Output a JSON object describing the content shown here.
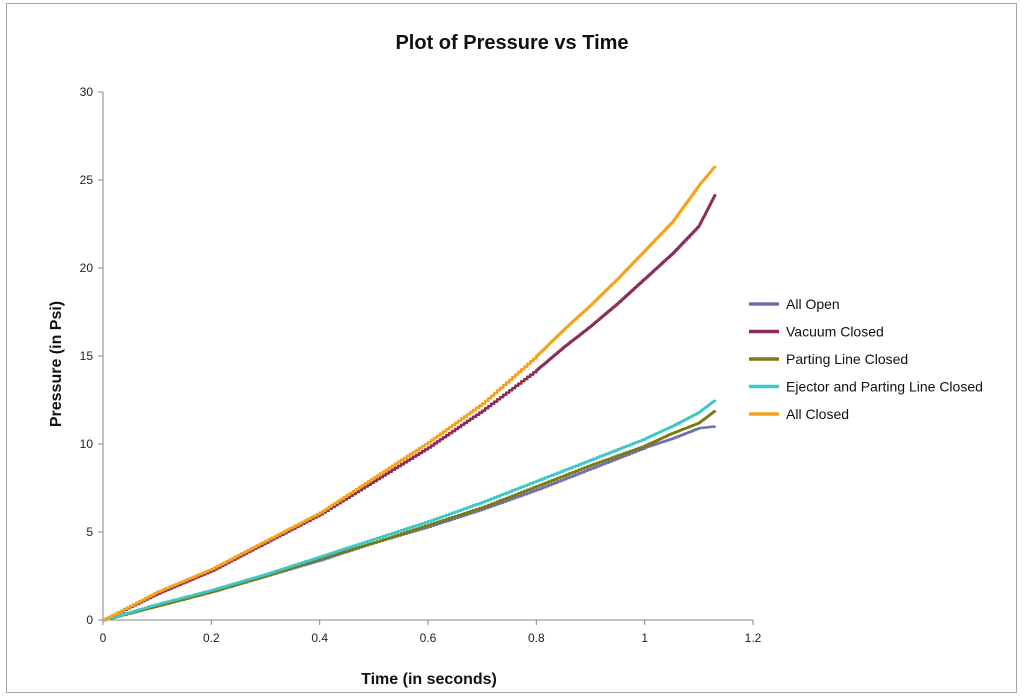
{
  "chart_data": {
    "type": "line",
    "title": "Plot of Pressure vs Time",
    "xlabel": "Time (in seconds)",
    "ylabel": "Pressure (in Psi)",
    "xlim": [
      0,
      1.2
    ],
    "ylim": [
      0,
      30
    ],
    "xticks": [
      0,
      0.2,
      0.4,
      0.6,
      0.8,
      1,
      1.2
    ],
    "xtick_labels": [
      "0",
      "0.2",
      "0.4",
      "0.6",
      "0.8",
      "1",
      "1.2"
    ],
    "yticks": [
      0,
      5,
      10,
      15,
      20,
      25,
      30
    ],
    "ytick_labels": [
      "0",
      "5",
      "10",
      "15",
      "20",
      "25",
      "30"
    ],
    "grid": false,
    "legend_position": "right",
    "series": [
      {
        "name": "All Open",
        "color": "#7070b0",
        "x": [
          0,
          0.1,
          0.2,
          0.3,
          0.4,
          0.5,
          0.6,
          0.7,
          0.8,
          0.9,
          1.0,
          1.05,
          1.1,
          1.13
        ],
        "y": [
          0,
          0.8,
          1.6,
          2.5,
          3.4,
          4.4,
          5.3,
          6.3,
          7.4,
          8.6,
          9.8,
          10.3,
          10.9,
          11.0
        ]
      },
      {
        "name": "Vacuum Closed",
        "color": "#8b2d5a",
        "x": [
          0,
          0.1,
          0.2,
          0.3,
          0.4,
          0.5,
          0.6,
          0.7,
          0.8,
          0.85,
          0.9,
          0.95,
          1.0,
          1.05,
          1.1,
          1.13
        ],
        "y": [
          0,
          1.5,
          2.8,
          4.4,
          6.0,
          7.9,
          9.8,
          11.9,
          14.2,
          15.5,
          16.7,
          18.0,
          19.4,
          20.8,
          22.4,
          24.2
        ]
      },
      {
        "name": "Parting Line Closed",
        "color": "#7a7a10",
        "x": [
          0,
          0.1,
          0.2,
          0.3,
          0.4,
          0.5,
          0.6,
          0.7,
          0.8,
          0.9,
          1.0,
          1.05,
          1.1,
          1.13
        ],
        "y": [
          0,
          0.8,
          1.6,
          2.5,
          3.5,
          4.4,
          5.4,
          6.4,
          7.6,
          8.8,
          9.9,
          10.6,
          11.2,
          11.9
        ]
      },
      {
        "name": "Ejector and Parting Line Closed",
        "color": "#3cc8c8",
        "x": [
          0,
          0.1,
          0.2,
          0.3,
          0.4,
          0.5,
          0.6,
          0.7,
          0.8,
          0.9,
          1.0,
          1.05,
          1.1,
          1.13
        ],
        "y": [
          0,
          0.9,
          1.7,
          2.6,
          3.6,
          4.6,
          5.6,
          6.7,
          7.9,
          9.1,
          10.3,
          11.0,
          11.8,
          12.5
        ]
      },
      {
        "name": "All Closed",
        "color": "#f5a21c",
        "x": [
          0,
          0.1,
          0.2,
          0.3,
          0.4,
          0.5,
          0.6,
          0.7,
          0.8,
          0.85,
          0.9,
          0.95,
          1.0,
          1.05,
          1.1,
          1.13
        ],
        "y": [
          0,
          1.6,
          2.9,
          4.5,
          6.1,
          8.1,
          10.1,
          12.3,
          15.0,
          16.5,
          17.9,
          19.4,
          21.0,
          22.6,
          24.7,
          25.8
        ]
      }
    ]
  }
}
